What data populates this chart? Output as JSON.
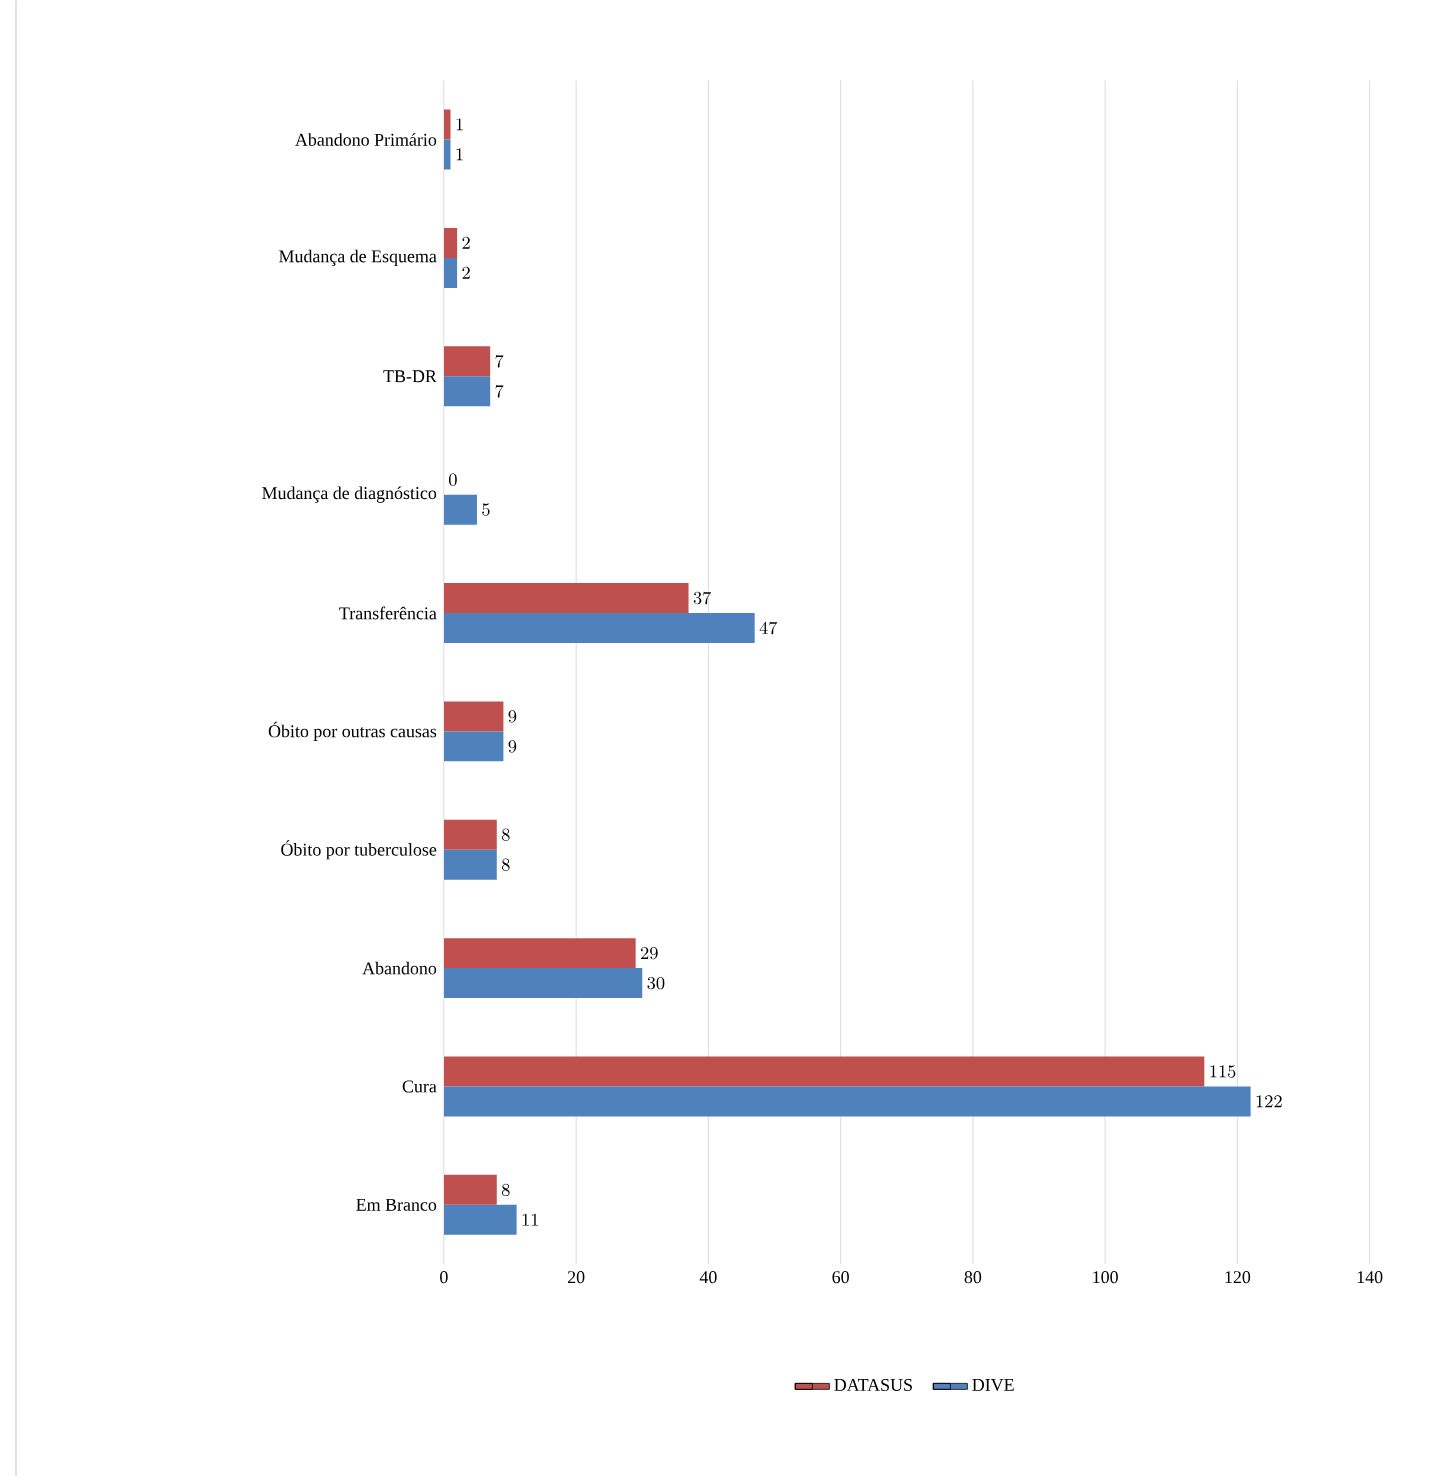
{
  "chart_data": {
    "type": "bar",
    "orientation": "horizontal",
    "categories": [
      "Abandono Primário",
      "Mudança de Esquema",
      "TB-DR",
      "Mudança de diagnóstico",
      "Transferência",
      "Óbito por outras causas",
      "Óbito por tuberculose",
      "Abandono",
      "Cura",
      "Em Branco"
    ],
    "series": [
      {
        "name": "DATASUS",
        "color": "#c0504d",
        "values": [
          1,
          2,
          7,
          0,
          37,
          9,
          8,
          29,
          115,
          8
        ]
      },
      {
        "name": "DIVE",
        "color": "#4f81bd",
        "values": [
          1,
          2,
          7,
          5,
          47,
          9,
          8,
          30,
          122,
          11
        ]
      }
    ],
    "xlim": [
      0,
      140
    ],
    "xticks": [
      0,
      20,
      40,
      60,
      80,
      100,
      120,
      140
    ],
    "grid": "x",
    "legend": "bottom",
    "data_labels": true
  }
}
